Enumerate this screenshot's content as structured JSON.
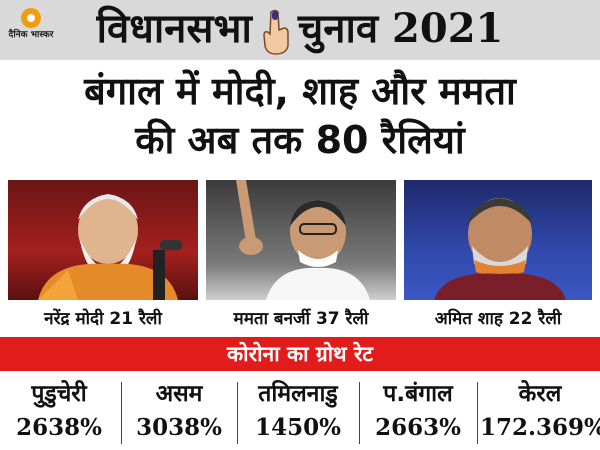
{
  "banner": {
    "logo_text": "दैनिक भास्कर",
    "title_part1": "विधानसभा",
    "title_part2": "चुनाव 2021",
    "icon": "inked-finger-icon"
  },
  "headline": {
    "line1": "बंगाल में मोदी, शाह और ममता",
    "line2": "की अब तक 80 रैलियां"
  },
  "leaders": [
    {
      "caption": "नरेंद्र मोदी 21 रैली",
      "rallies": 21
    },
    {
      "caption": "ममता बनर्जी 37 रैली",
      "rallies": 37
    },
    {
      "caption": "अमित शाह 22 रैली",
      "rallies": 22
    }
  ],
  "corona": {
    "heading": "कोरोना का ग्रोथ रेट",
    "states": [
      {
        "name": "पुडुचेरी",
        "value": "2638%"
      },
      {
        "name": "असम",
        "value": "3038%"
      },
      {
        "name": "तमिलनाडु",
        "value": "1450%"
      },
      {
        "name": "प.बंगाल",
        "value": "2663%"
      },
      {
        "name": "केरल",
        "value": "172.369%"
      }
    ]
  },
  "colors": {
    "banner_bg": "#d9d9d9",
    "accent_red": "#e21b1b",
    "logo_orange": "#f39c12"
  }
}
